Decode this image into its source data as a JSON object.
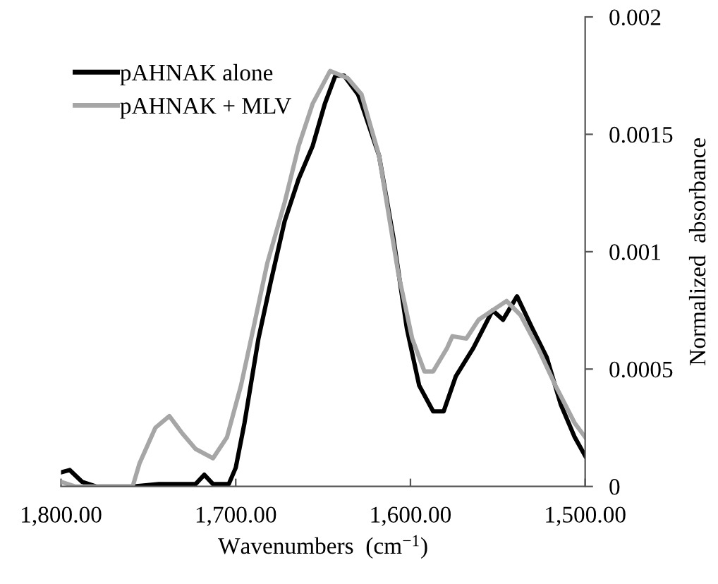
{
  "chart_data": {
    "type": "line",
    "xlabel": "Wavenumbers  (cm$^{−1}$)",
    "ylabel": "Normalized  absorbance",
    "xlim": [
      1800,
      1500
    ],
    "xticks": [
      {
        "value": 1800,
        "label": "1,800.00"
      },
      {
        "value": 1700,
        "label": "1,700.00"
      },
      {
        "value": 1600,
        "label": "1,600.00"
      },
      {
        "value": 1500,
        "label": "1,500.00"
      }
    ],
    "ylim": [
      0,
      0.002
    ],
    "yticks": [
      0,
      0.0005,
      0.001,
      0.0015,
      0.002
    ],
    "grid": false,
    "legend": "top left",
    "marker": "none",
    "line_style": "solid",
    "series": [
      {
        "name": "pAHNAK alone",
        "color": "#000000",
        "x": [
          1800,
          1795,
          1788,
          1780,
          1759,
          1744,
          1723,
          1718,
          1713,
          1704,
          1700,
          1695,
          1687,
          1680,
          1672,
          1664,
          1656,
          1649,
          1643,
          1638,
          1630,
          1628,
          1618,
          1610,
          1602,
          1595,
          1587,
          1581,
          1574,
          1564,
          1553,
          1547,
          1539,
          1530,
          1522,
          1514,
          1506,
          1500
        ],
        "values": [
          6e-05,
          7e-05,
          2e-05,
          0,
          0,
          1e-05,
          1e-05,
          5e-05,
          1e-05,
          1e-05,
          8e-05,
          0.00027,
          0.00063,
          0.00087,
          0.00113,
          0.00131,
          0.00145,
          0.00163,
          0.00175,
          0.00175,
          0.00167,
          0.00163,
          0.00141,
          0.00107,
          0.00067,
          0.00043,
          0.00032,
          0.00032,
          0.00047,
          0.00059,
          0.00075,
          0.00071,
          0.00081,
          0.00067,
          0.00055,
          0.00035,
          0.00021,
          0.00013
        ]
      },
      {
        "name": "pAHNAK + MLV",
        "color": "#a6a6a6",
        "x": [
          1800,
          1792,
          1759,
          1755,
          1746,
          1738,
          1731,
          1723,
          1713,
          1705,
          1697,
          1690,
          1682,
          1672,
          1664,
          1656,
          1646,
          1636,
          1628,
          1618,
          1607,
          1599,
          1592,
          1587,
          1579,
          1576,
          1568,
          1561,
          1553,
          1545,
          1537,
          1527,
          1517,
          1506,
          1500
        ],
        "values": [
          2e-05,
          0,
          0,
          0.0001,
          0.00025,
          0.0003,
          0.00023,
          0.00016,
          0.00012,
          0.00021,
          0.00043,
          0.00067,
          0.00095,
          0.00121,
          0.00145,
          0.00163,
          0.00177,
          0.00174,
          0.00167,
          0.00141,
          0.00091,
          0.00063,
          0.00049,
          0.00049,
          0.00059,
          0.00064,
          0.00063,
          0.00071,
          0.00075,
          0.00079,
          0.00073,
          0.00059,
          0.00043,
          0.00027,
          0.00021
        ]
      }
    ]
  }
}
